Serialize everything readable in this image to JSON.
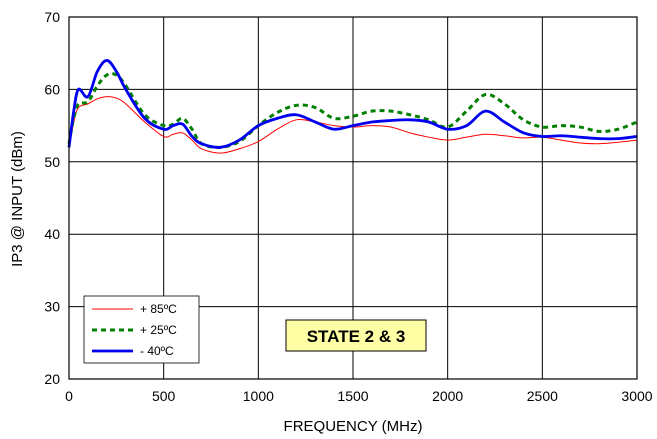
{
  "chart_data": {
    "type": "line",
    "title": "",
    "xlabel": "FREQUENCY (MHz)",
    "ylabel": "IP3 @ INPUT (dBm)",
    "xlim": [
      0,
      3000
    ],
    "ylim": [
      20,
      70
    ],
    "xticks": [
      0,
      500,
      1000,
      1500,
      2000,
      2500,
      3000
    ],
    "yticks": [
      20,
      30,
      40,
      50,
      60,
      70
    ],
    "grid": true,
    "legend_position": "bottom-left",
    "annotation": "STATE 2 & 3",
    "series": [
      {
        "name": "+ 85ºC",
        "color": "#ff0000",
        "style": "solid-thin",
        "x": [
          0,
          25,
          50,
          100,
          150,
          200,
          250,
          300,
          400,
          500,
          550,
          600,
          650,
          700,
          800,
          900,
          1000,
          1100,
          1200,
          1300,
          1400,
          1500,
          1600,
          1700,
          1800,
          1900,
          2000,
          2100,
          2200,
          2300,
          2400,
          2500,
          2600,
          2700,
          2800,
          2900,
          3000
        ],
        "y": [
          51.8,
          55.5,
          57.5,
          58.0,
          58.7,
          59.0,
          58.8,
          58.0,
          55.5,
          53.5,
          53.8,
          54.0,
          53.0,
          51.8,
          51.2,
          51.8,
          52.8,
          54.5,
          55.8,
          55.5,
          55.0,
          54.8,
          55.0,
          54.8,
          54.0,
          53.4,
          53.0,
          53.4,
          53.8,
          53.6,
          53.3,
          53.4,
          53.0,
          52.6,
          52.5,
          52.7,
          53.0
        ]
      },
      {
        "name": "+ 25ºC",
        "color": "#008000",
        "style": "dashed",
        "x": [
          0,
          25,
          50,
          100,
          150,
          200,
          250,
          300,
          400,
          500,
          550,
          600,
          650,
          700,
          800,
          900,
          1000,
          1100,
          1200,
          1300,
          1400,
          1500,
          1600,
          1700,
          1800,
          1900,
          2000,
          2100,
          2200,
          2300,
          2400,
          2500,
          2600,
          2700,
          2800,
          2900,
          3000
        ],
        "y": [
          52.5,
          56.0,
          58.0,
          58.3,
          60.5,
          62.0,
          62.0,
          60.5,
          56.5,
          55.0,
          55.2,
          56.0,
          54.5,
          52.5,
          52.0,
          52.8,
          55.0,
          56.8,
          57.8,
          57.5,
          56.0,
          56.3,
          57.0,
          57.0,
          56.5,
          55.8,
          54.8,
          57.0,
          59.3,
          58.0,
          55.8,
          54.8,
          55.0,
          54.8,
          54.2,
          54.5,
          55.5
        ]
      },
      {
        "name": "- 40ºC",
        "color": "#0000ee",
        "style": "solid-thick",
        "x": [
          0,
          25,
          50,
          100,
          150,
          200,
          250,
          300,
          400,
          500,
          550,
          600,
          650,
          700,
          800,
          900,
          1000,
          1100,
          1200,
          1300,
          1400,
          1500,
          1600,
          1700,
          1800,
          1900,
          2000,
          2100,
          2200,
          2300,
          2400,
          2500,
          2600,
          2700,
          2800,
          2900,
          3000
        ],
        "y": [
          52.0,
          57.0,
          60.0,
          59.0,
          62.5,
          64.0,
          62.5,
          60.0,
          56.0,
          54.5,
          55.0,
          55.2,
          53.5,
          52.5,
          52.0,
          53.0,
          55.0,
          56.0,
          56.5,
          55.5,
          54.5,
          55.0,
          55.5,
          55.7,
          55.8,
          55.5,
          54.5,
          55.0,
          57.0,
          55.5,
          54.0,
          53.5,
          53.6,
          53.4,
          53.2,
          53.2,
          53.5
        ]
      }
    ]
  }
}
